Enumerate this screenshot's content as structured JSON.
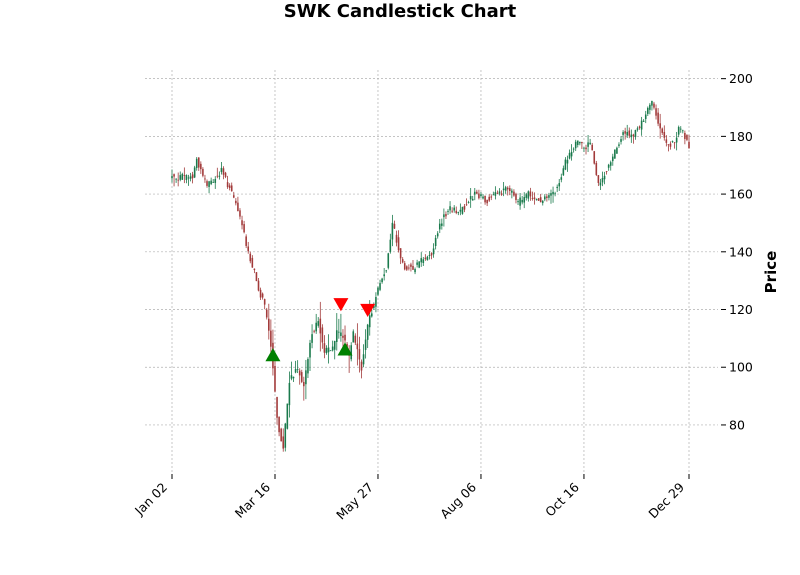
{
  "chart_data": {
    "type": "candlestick",
    "title": "SWK Candlestick Chart",
    "ylabel": "Price",
    "ylim": [
      63,
      203
    ],
    "yticks": [
      80,
      100,
      120,
      140,
      160,
      180,
      200
    ],
    "xticks": [
      {
        "label": "Jan 02",
        "index": 0
      },
      {
        "label": "Mar 16",
        "index": 50
      },
      {
        "label": "May 27",
        "index": 100
      },
      {
        "label": "Aug 06",
        "index": 150
      },
      {
        "label": "Oct 16",
        "index": 200
      },
      {
        "label": "Dec 29",
        "index": 251
      }
    ],
    "n_sessions": 252,
    "grid": true,
    "y_axis_side": "right",
    "up_color": "#1a7a4c",
    "down_color": "#a23a3a",
    "close_path": [
      [
        0,
        166
      ],
      [
        10,
        166
      ],
      [
        12,
        172
      ],
      [
        17,
        163
      ],
      [
        22,
        166
      ],
      [
        24,
        168
      ],
      [
        28,
        162
      ],
      [
        33,
        152
      ],
      [
        37,
        140
      ],
      [
        43,
        125
      ],
      [
        45,
        121
      ],
      [
        48,
        108
      ],
      [
        51,
        82
      ],
      [
        54,
        72
      ],
      [
        57,
        95
      ],
      [
        61,
        100
      ],
      [
        64,
        93
      ],
      [
        68,
        112
      ],
      [
        71,
        116
      ],
      [
        74,
        106
      ],
      [
        78,
        107
      ],
      [
        80,
        112
      ],
      [
        83,
        111
      ],
      [
        86,
        103
      ],
      [
        88,
        112
      ],
      [
        90,
        106
      ],
      [
        92,
        100
      ],
      [
        95,
        115
      ],
      [
        98,
        122
      ],
      [
        100,
        128
      ],
      [
        104,
        134
      ],
      [
        107,
        150
      ],
      [
        111,
        138
      ],
      [
        113,
        135
      ],
      [
        117,
        134
      ],
      [
        122,
        138
      ],
      [
        126,
        139
      ],
      [
        130,
        150
      ],
      [
        135,
        155
      ],
      [
        140,
        154
      ],
      [
        147,
        160
      ],
      [
        153,
        158
      ],
      [
        158,
        160
      ],
      [
        163,
        162
      ],
      [
        168,
        157
      ],
      [
        173,
        160
      ],
      [
        178,
        158
      ],
      [
        182,
        158
      ],
      [
        187,
        162
      ],
      [
        192,
        173
      ],
      [
        196,
        178
      ],
      [
        200,
        176
      ],
      [
        203,
        178
      ],
      [
        207,
        163
      ],
      [
        212,
        170
      ],
      [
        216,
        176
      ],
      [
        219,
        182
      ],
      [
        223,
        180
      ],
      [
        227,
        183
      ],
      [
        230,
        187
      ],
      [
        233,
        192
      ],
      [
        236,
        185
      ],
      [
        240,
        178
      ],
      [
        244,
        177
      ],
      [
        246,
        183
      ],
      [
        249,
        180
      ],
      [
        251,
        177
      ]
    ],
    "markers": [
      {
        "type": "buy",
        "index": 49,
        "price": 104,
        "color": "#008000"
      },
      {
        "type": "buy",
        "index": 84,
        "price": 106,
        "color": "#008000"
      },
      {
        "type": "sell",
        "index": 82,
        "price": 122,
        "color": "#ff0000"
      },
      {
        "type": "sell",
        "index": 95,
        "price": 120,
        "color": "#ff0000"
      }
    ]
  }
}
